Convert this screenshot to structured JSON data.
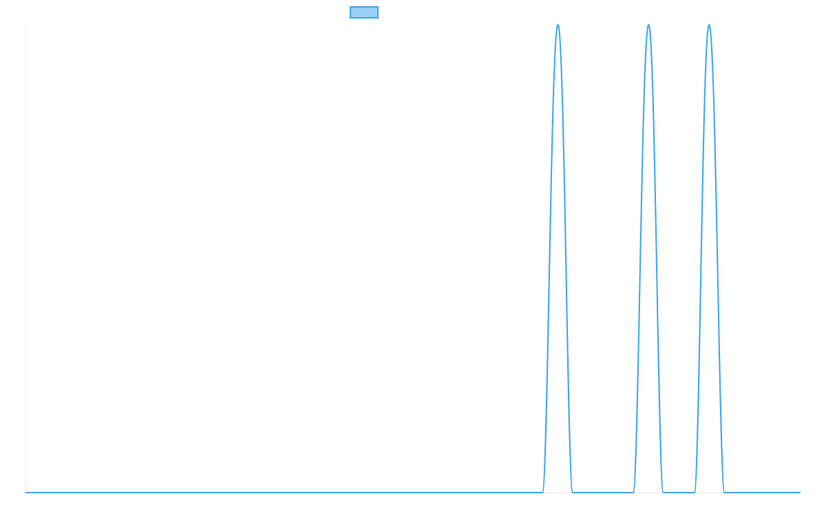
{
  "chart_data": {
    "type": "line",
    "title": "",
    "xlabel": "",
    "ylabel": "",
    "grid": false,
    "legend": "top-center",
    "xlim": [
      0,
      100
    ],
    "ylim": [
      0,
      1
    ],
    "series": [
      {
        "name": "",
        "color": "#36a2eb",
        "fill": "rgba(54, 162, 235, 0.5)",
        "x": [
          0,
          66.7,
          68.7,
          70.6,
          78.4,
          80.4,
          82.3,
          86.3,
          88.2,
          90.2,
          100
        ],
        "y": [
          0,
          0,
          1,
          0,
          0,
          1,
          0,
          0,
          1,
          0,
          0
        ]
      }
    ]
  }
}
